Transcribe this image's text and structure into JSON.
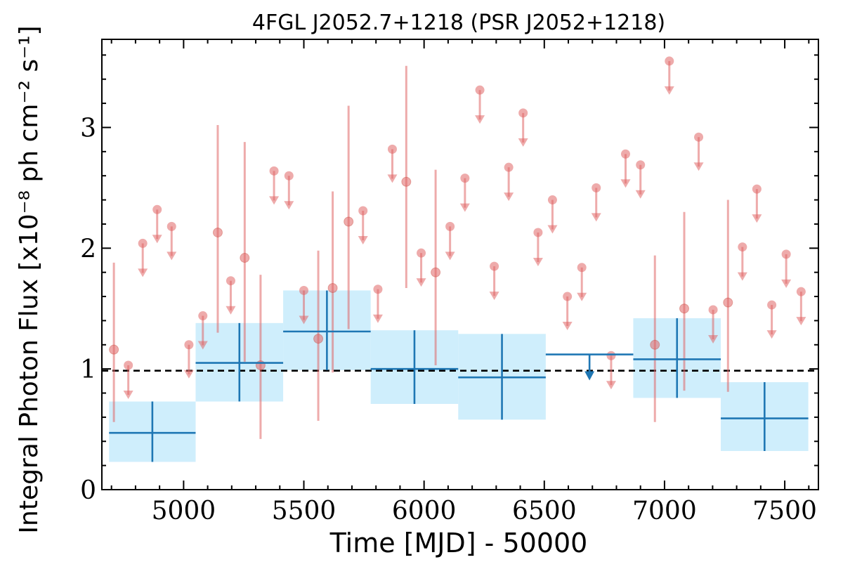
{
  "chart_data": {
    "type": "scatter",
    "title": "4FGL J2052.7+1218 (PSR J2052+1218)",
    "xlabel": "Time [MJD] - 50000",
    "ylabel": "Integral Photon Flux [x10⁻⁸ ph cm⁻² s⁻¹]",
    "xlim": [
      4660,
      7640
    ],
    "ylim": [
      0,
      3.73
    ],
    "x_ticks": [
      5000,
      5500,
      6000,
      6500,
      7000,
      7500
    ],
    "x_tick_labels": [
      "5000",
      "5500",
      "6000",
      "6500",
      "7000",
      "7500"
    ],
    "y_ticks": [
      0,
      1,
      2,
      3
    ],
    "y_tick_labels": [
      "0",
      "1",
      "2",
      "3"
    ],
    "reference_line": {
      "y": 0.985,
      "style": "dashed",
      "color": "#000000"
    },
    "colors": {
      "short_points": "#e06666",
      "long_bins": "#1f77b4",
      "long_bins_fill": "#cfeefc"
    },
    "short_bin_measurements": [
      {
        "x": 4710,
        "y": 1.16,
        "yerr_low": 0.56,
        "yerr_high": 1.88
      },
      {
        "x": 5142,
        "y": 2.13,
        "yerr_low": 1.3,
        "yerr_high": 3.02
      },
      {
        "x": 5254,
        "y": 1.92,
        "yerr_low": 1.06,
        "yerr_high": 2.88
      },
      {
        "x": 5320,
        "y": 1.03,
        "yerr_low": 0.42,
        "yerr_high": 1.78
      },
      {
        "x": 5560,
        "y": 1.25,
        "yerr_low": 0.57,
        "yerr_high": 1.98
      },
      {
        "x": 5620,
        "y": 1.67,
        "yerr_low": 0.97,
        "yerr_high": 2.47
      },
      {
        "x": 5686,
        "y": 2.22,
        "yerr_low": 1.33,
        "yerr_high": 3.18
      },
      {
        "x": 5926,
        "y": 2.55,
        "yerr_low": 1.67,
        "yerr_high": 3.51
      },
      {
        "x": 6048,
        "y": 1.8,
        "yerr_low": 1.03,
        "yerr_high": 2.65
      },
      {
        "x": 6960,
        "y": 1.2,
        "yerr_low": 0.56,
        "yerr_high": 1.94
      },
      {
        "x": 7082,
        "y": 1.5,
        "yerr_low": 0.82,
        "yerr_high": 2.3
      },
      {
        "x": 7264,
        "y": 1.55,
        "yerr_low": 0.81,
        "yerr_high": 2.4
      }
    ],
    "short_bin_upper_limits": [
      {
        "x": 4770,
        "y": 1.03
      },
      {
        "x": 4830,
        "y": 2.04
      },
      {
        "x": 4890,
        "y": 2.32
      },
      {
        "x": 4950,
        "y": 2.18
      },
      {
        "x": 5022,
        "y": 1.2
      },
      {
        "x": 5080,
        "y": 1.44
      },
      {
        "x": 5196,
        "y": 1.73
      },
      {
        "x": 5376,
        "y": 2.64
      },
      {
        "x": 5438,
        "y": 2.6
      },
      {
        "x": 5500,
        "y": 1.65
      },
      {
        "x": 5746,
        "y": 2.31
      },
      {
        "x": 5808,
        "y": 1.66
      },
      {
        "x": 5868,
        "y": 2.82
      },
      {
        "x": 5988,
        "y": 1.96
      },
      {
        "x": 6108,
        "y": 2.18
      },
      {
        "x": 6170,
        "y": 2.58
      },
      {
        "x": 6232,
        "y": 3.31
      },
      {
        "x": 6292,
        "y": 1.85
      },
      {
        "x": 6352,
        "y": 2.67
      },
      {
        "x": 6412,
        "y": 3.12
      },
      {
        "x": 6474,
        "y": 2.13
      },
      {
        "x": 6534,
        "y": 2.4
      },
      {
        "x": 6596,
        "y": 1.6
      },
      {
        "x": 6656,
        "y": 1.84
      },
      {
        "x": 6716,
        "y": 2.5
      },
      {
        "x": 6778,
        "y": 1.11
      },
      {
        "x": 6838,
        "y": 2.78
      },
      {
        "x": 6900,
        "y": 2.69
      },
      {
        "x": 7020,
        "y": 3.55
      },
      {
        "x": 7142,
        "y": 2.92
      },
      {
        "x": 7202,
        "y": 1.49
      },
      {
        "x": 7324,
        "y": 2.01
      },
      {
        "x": 7384,
        "y": 2.49
      },
      {
        "x": 7446,
        "y": 1.53
      },
      {
        "x": 7506,
        "y": 1.95
      },
      {
        "x": 7568,
        "y": 1.64
      }
    ],
    "long_bin_measurements": [
      {
        "x": 4870,
        "x_low": 4690,
        "x_high": 5050,
        "y": 0.47,
        "y_low": 0.23,
        "y_high": 0.73
      },
      {
        "x": 5232,
        "x_low": 5050,
        "x_high": 5414,
        "y": 1.05,
        "y_low": 0.73,
        "y_high": 1.38
      },
      {
        "x": 5596,
        "x_low": 5414,
        "x_high": 5778,
        "y": 1.31,
        "y_low": 0.99,
        "y_high": 1.65
      },
      {
        "x": 5960,
        "x_low": 5778,
        "x_high": 6142,
        "y": 1.0,
        "y_low": 0.71,
        "y_high": 1.32
      },
      {
        "x": 6324,
        "x_low": 6142,
        "x_high": 6506,
        "y": 0.93,
        "y_low": 0.58,
        "y_high": 1.29
      },
      {
        "x": 7052,
        "x_low": 6870,
        "x_high": 7234,
        "y": 1.08,
        "y_low": 0.76,
        "y_high": 1.42
      },
      {
        "x": 7416,
        "x_low": 7234,
        "x_high": 7598,
        "y": 0.59,
        "y_low": 0.32,
        "y_high": 0.89
      }
    ],
    "long_bin_upper_limits": [
      {
        "x": 6688,
        "x_low": 6506,
        "x_high": 6870,
        "y": 1.12
      }
    ]
  }
}
